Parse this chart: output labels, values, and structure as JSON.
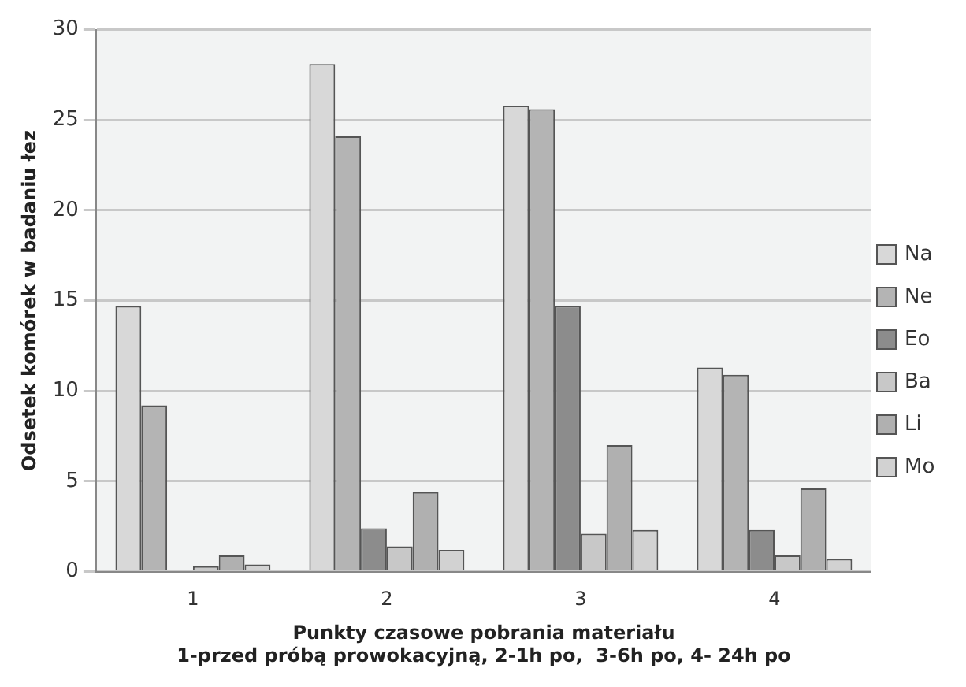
{
  "chart_data": {
    "type": "bar",
    "categories": [
      "1",
      "2",
      "3",
      "4"
    ],
    "series": [
      {
        "name": "Na",
        "color": "#d8d8d8",
        "values": [
          14.7,
          28.1,
          25.8,
          11.3
        ]
      },
      {
        "name": "Ne",
        "color": "#b4b4b4",
        "values": [
          9.2,
          24.1,
          25.6,
          10.9
        ]
      },
      {
        "name": "Eo",
        "color": "#8c8c8c",
        "values": [
          0.1,
          2.4,
          14.7,
          2.3
        ]
      },
      {
        "name": "Ba",
        "color": "#c8c8c8",
        "values": [
          0.3,
          1.4,
          2.1,
          0.9
        ]
      },
      {
        "name": "Li",
        "color": "#b0b0b0",
        "values": [
          0.9,
          4.4,
          7.0,
          4.6
        ]
      },
      {
        "name": "Mo",
        "color": "#d2d2d2",
        "values": [
          0.4,
          1.2,
          2.3,
          0.7
        ]
      }
    ],
    "xlabel": "Punkty czasowe pobrania materiału\n1-przed próbą prowokacyjną, 2-1h po,  3-6h po, 4- 24h po",
    "ylabel": "Odsetek komórek w badaniu łez",
    "ylim": [
      0,
      30
    ],
    "yticks": [
      0,
      5,
      10,
      15,
      20,
      25,
      30
    ],
    "grid": "y",
    "legend": "right"
  }
}
